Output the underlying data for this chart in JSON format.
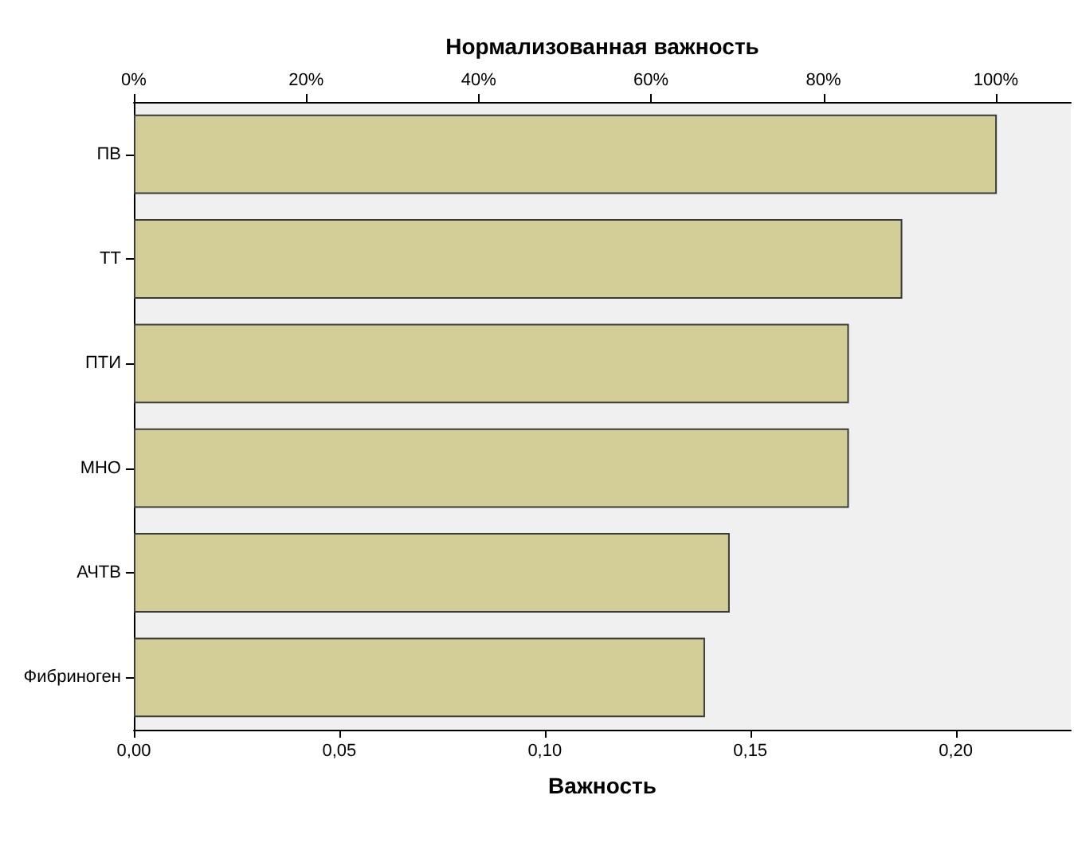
{
  "chart_data": {
    "type": "bar",
    "orientation": "horizontal",
    "xlabel": "Важность",
    "x2label": "Нормализованная важность",
    "categories": [
      "ПВ",
      "ТТ",
      "ПТИ",
      "МНО",
      "АЧТВ",
      "Фибриноген"
    ],
    "values": [
      0.21,
      0.187,
      0.174,
      0.174,
      0.145,
      0.139
    ],
    "color": "#d3ce98",
    "xlim": [
      0,
      0.228
    ],
    "xticks": [
      {
        "value": 0,
        "label": "0,00"
      },
      {
        "value": 0.05,
        "label": "0,05"
      },
      {
        "value": 0.1,
        "label": "0,10"
      },
      {
        "value": 0.15,
        "label": "0,15"
      },
      {
        "value": 0.2,
        "label": "0,20"
      }
    ],
    "x2lim": [
      0,
      108.7
    ],
    "x2ticks": [
      {
        "value": 0,
        "label": "0%"
      },
      {
        "value": 20,
        "label": "20%"
      },
      {
        "value": 40,
        "label": "40%"
      },
      {
        "value": 60,
        "label": "60%"
      },
      {
        "value": 80,
        "label": "80%"
      },
      {
        "value": 100,
        "label": "100%"
      }
    ],
    "grid": false
  }
}
